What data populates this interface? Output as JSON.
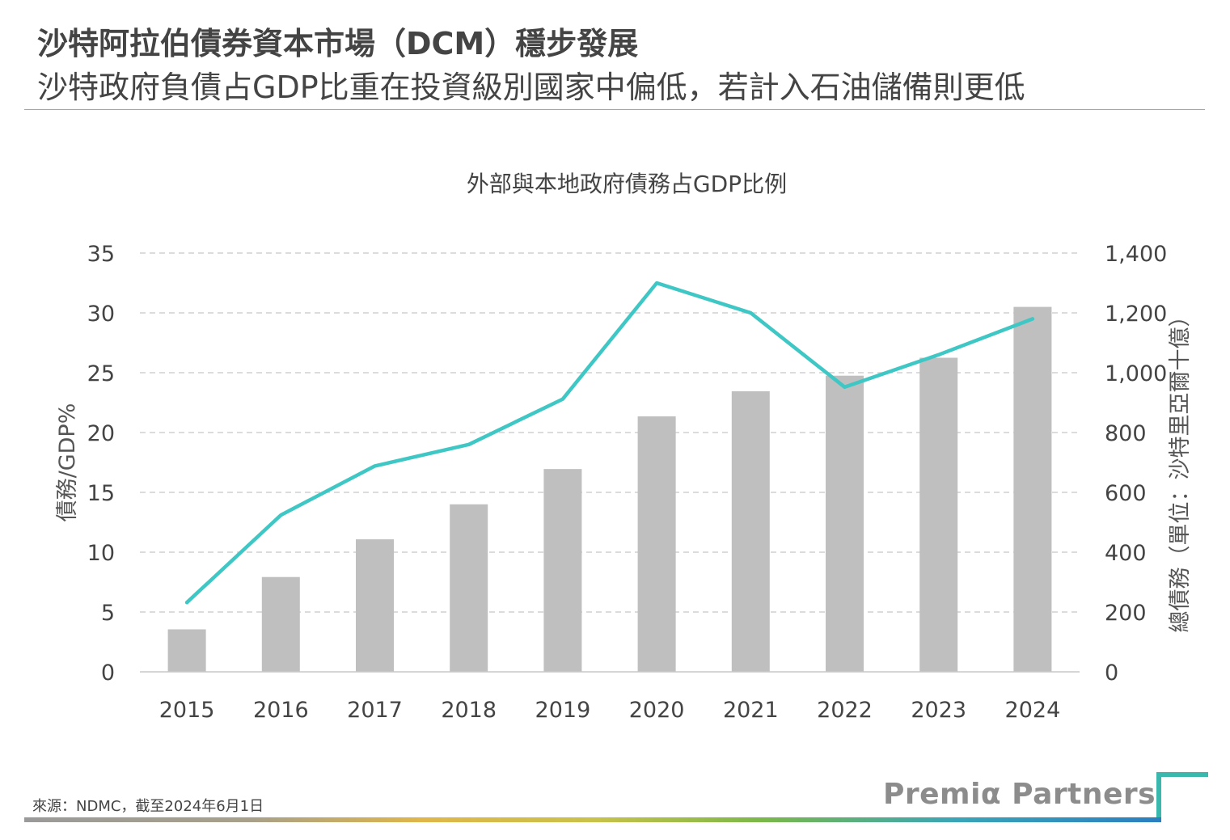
{
  "header": {
    "title": "沙特阿拉伯債券資本市場（DCM）穩步發展",
    "subtitle": "沙特政府負債占GDP比重在投資級別國家中偏低，若計入石油儲備則更低"
  },
  "footer": {
    "source": "來源：NDMC，截至2024年6月1日",
    "logo": "Premiα Partners"
  },
  "colors": {
    "bar": "#bfbfbf",
    "line": "#3ec7c4",
    "grid": "#d0d0d0",
    "accent": "#3bb8ad"
  },
  "chart_data": {
    "type": "bar+line",
    "title": "外部與本地政府債務占GDP比例",
    "xlabel": "",
    "ylabel_left": "債務/GDP%",
    "ylabel_right": "總債務（單位：沙特里亞爾十億）",
    "categories": [
      "2015",
      "2016",
      "2017",
      "2018",
      "2019",
      "2020",
      "2021",
      "2022",
      "2023",
      "2024"
    ],
    "series": [
      {
        "kind": "line",
        "axis": "left",
        "values": [
          5.8,
          13.1,
          17.2,
          19.0,
          22.8,
          32.5,
          30.0,
          23.8,
          26.5,
          29.5
        ]
      },
      {
        "kind": "bar",
        "axis": "right",
        "values": [
          142,
          317,
          443,
          560,
          678,
          854,
          938,
          990,
          1050,
          1220
        ]
      }
    ],
    "y_left": {
      "min": 0,
      "max": 35,
      "ticks": [
        "0",
        "5",
        "10",
        "15",
        "20",
        "25",
        "30",
        "35"
      ]
    },
    "y_right": {
      "min": 0,
      "max": 1400,
      "ticks": [
        "0",
        "200",
        "400",
        "600",
        "800",
        "1,000",
        "1,200",
        "1,400"
      ]
    },
    "grid": true,
    "legend": "none"
  }
}
